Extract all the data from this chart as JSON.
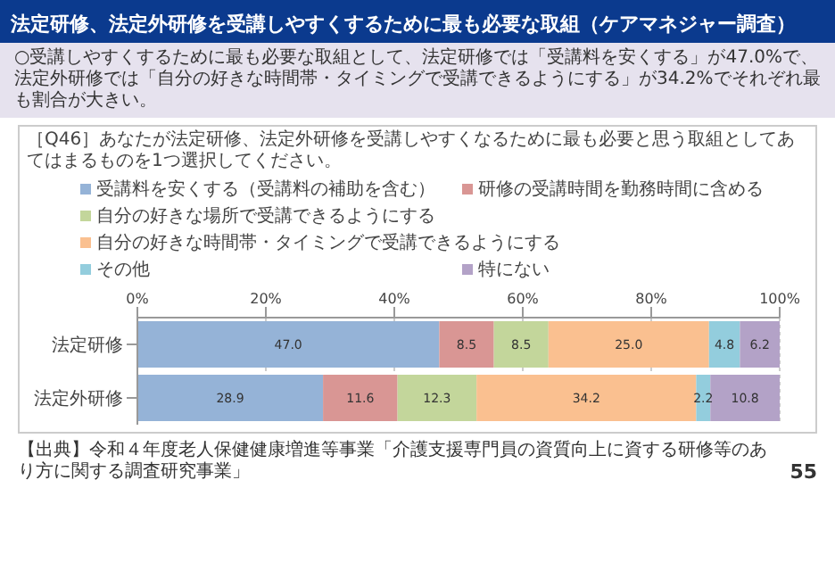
{
  "chart_data": {
    "type": "bar",
    "title": "法定研修、法定外研修を受講しやすくするために最も必要な取組（ケアマネジャー調査）",
    "subtitle": "○受講しやすくするために最も必要な取組として、法定研修では「受講料を安くする」が47.0%で、法定外研修では「自分の好きな時間帯・タイミングで受講できるようにする」が34.2%でそれぞれ最も割合が大きい。",
    "annotations": [
      "［Q46］あなたが法定研修、法定外研修を受講しやすくなるために最も必要と思う取組としてあてはまるものを1つ選択してください。",
      "【出典】令和４年度老人保健健康増進等事業「介護支援専門員の資質向上に資する研修等のあり方に関する調査研究事業」",
      "55"
    ],
    "orientation": "horizontal",
    "stacked": true,
    "categories": [
      "法定研修",
      "法定外研修"
    ],
    "series": [
      {
        "name": "受講料を安くする（受講料の補助を含む）",
        "color": "#95b3d7",
        "values": [
          47.0,
          28.9
        ],
        "value_labels": [
          "47.0",
          "28.9"
        ]
      },
      {
        "name": "研修の受講時間を勤務時間に含める",
        "color": "#d99694",
        "values": [
          8.5,
          11.6
        ],
        "value_labels": [
          "8.5",
          "11.6"
        ]
      },
      {
        "name": "自分の好きな場所で受講できるようにする",
        "color": "#c3d69b",
        "values": [
          8.5,
          12.3
        ],
        "value_labels": [
          "8.5",
          "12.3"
        ]
      },
      {
        "name": "自分の好きな時間帯・タイミングで受講できるようにする",
        "color": "#fac090",
        "values": [
          25.0,
          34.2
        ],
        "value_labels": [
          "25.0",
          "34.2"
        ]
      },
      {
        "name": "その他",
        "color": "#93cddd",
        "values": [
          4.8,
          2.2
        ],
        "value_labels": [
          "4.8",
          "2.2"
        ]
      },
      {
        "name": "特にない",
        "color": "#b3a2c7",
        "values": [
          6.2,
          10.8
        ],
        "value_labels": [
          "6.2",
          "10.8"
        ]
      }
    ],
    "xlim": [
      0,
      100
    ],
    "xticks": [
      {
        "value": 0,
        "label": "0%"
      },
      {
        "value": 20,
        "label": "20%"
      },
      {
        "value": 40,
        "label": "40%"
      },
      {
        "value": 60,
        "label": "60%"
      },
      {
        "value": 80,
        "label": "80%"
      },
      {
        "value": 100,
        "label": "100%"
      }
    ],
    "grid": "x",
    "legend": "top"
  }
}
